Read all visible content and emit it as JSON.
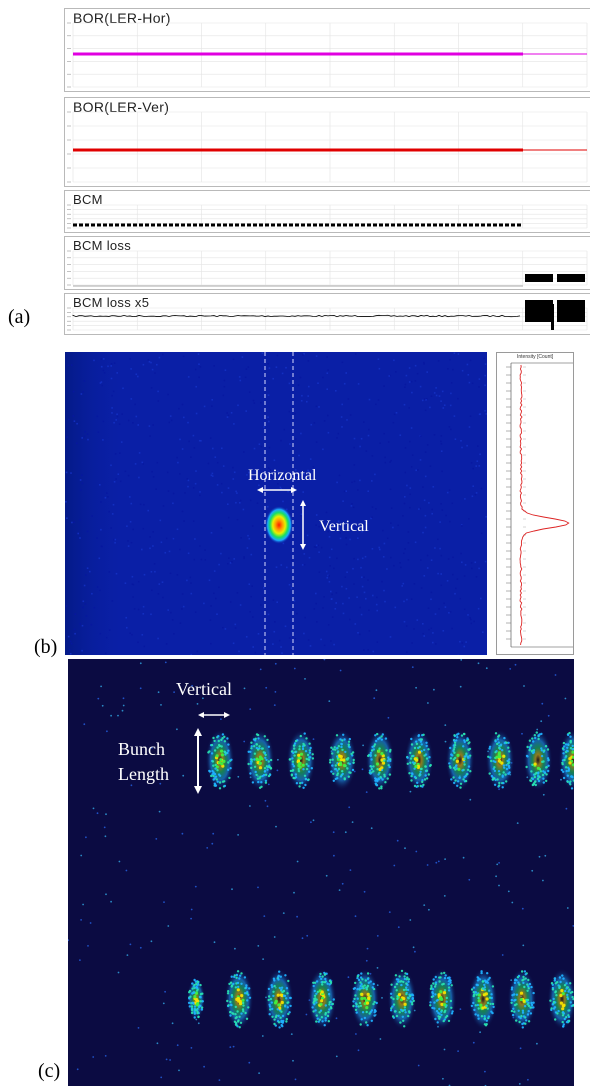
{
  "figure": {
    "panel_a": {
      "label": "(a)",
      "strips": [
        {
          "title": "BOR(LER-Hor)",
          "trace_color": "#e000e0"
        },
        {
          "title": "BOR(LER-Ver)",
          "trace_color": "#e00000"
        },
        {
          "title": "BCM",
          "trace_color": "#000000"
        },
        {
          "title": "BCM loss",
          "trace_color": "#000000"
        },
        {
          "title": "BCM loss x5",
          "trace_color": "#000000"
        }
      ]
    },
    "panel_b": {
      "label": "(b)",
      "horizontal_label": "Horizontal",
      "vertical_label": "Vertical",
      "profile_header": "Intensity [Count]"
    },
    "panel_c": {
      "label": "(c)",
      "vertical_label": "Vertical",
      "bunch_label_line1": "Bunch",
      "bunch_label_line2": "Length"
    }
  }
}
